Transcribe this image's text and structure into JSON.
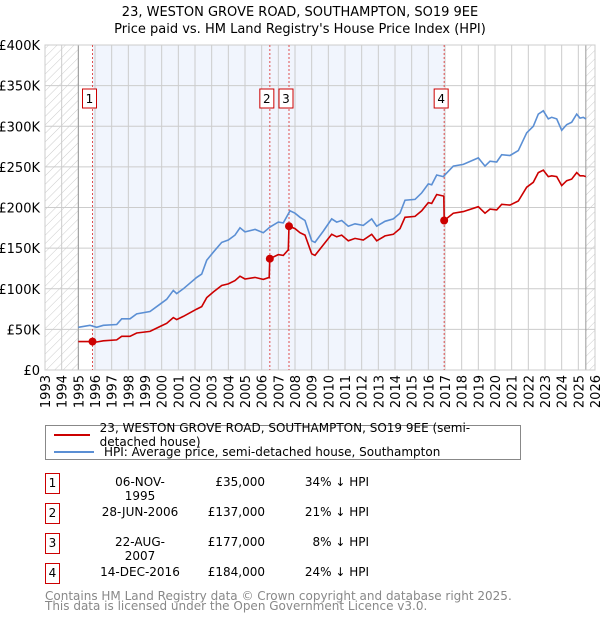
{
  "chart_data": {
    "type": "line",
    "title": "23, WESTON GROVE ROAD, SOUTHAMPTON, SO19 9EE",
    "subtitle": "Price paid vs. HM Land Registry's House Price Index (HPI)",
    "xlim": [
      1993,
      2026
    ],
    "ylim": [
      0,
      400000
    ],
    "x_ticks": [
      "1993",
      "1994",
      "1995",
      "1996",
      "1997",
      "1998",
      "1999",
      "2000",
      "2001",
      "2002",
      "2003",
      "2004",
      "2005",
      "2006",
      "2007",
      "2008",
      "2009",
      "2010",
      "2011",
      "2012",
      "2013",
      "2014",
      "2015",
      "2016",
      "2017",
      "2018",
      "2019",
      "2020",
      "2021",
      "2022",
      "2023",
      "2024",
      "2025",
      "2026"
    ],
    "y_ticks": [
      {
        "v": 0,
        "label": "£0"
      },
      {
        "v": 50000,
        "label": "£50K"
      },
      {
        "v": 100000,
        "label": "£100K"
      },
      {
        "v": 150000,
        "label": "£150K"
      },
      {
        "v": 200000,
        "label": "£200K"
      },
      {
        "v": 250000,
        "label": "£250K"
      },
      {
        "v": 300000,
        "label": "£300K"
      },
      {
        "v": 350000,
        "label": "£350K"
      },
      {
        "v": 400000,
        "label": "£400K"
      }
    ],
    "grid": true,
    "data_range": [
      1995,
      2025.45
    ],
    "series": [
      {
        "name": "23, WESTON GROVE ROAD, SOUTHAMPTON, SO19 9EE (semi-detached house)",
        "color": "#cc0000",
        "unit": "K",
        "points": [
          [
            1995.0,
            35
          ],
          [
            1995.85,
            35
          ],
          [
            1996.1,
            34.5
          ],
          [
            1996.5,
            36
          ],
          [
            1997.3,
            37
          ],
          [
            1997.6,
            41.5
          ],
          [
            1998.1,
            41.5
          ],
          [
            1998.5,
            45.5
          ],
          [
            1999.3,
            47.5
          ],
          [
            1999.9,
            53.5
          ],
          [
            2000.3,
            57.5
          ],
          [
            2000.7,
            64.5
          ],
          [
            2000.9,
            62
          ],
          [
            2001.3,
            66
          ],
          [
            2002.1,
            75
          ],
          [
            2002.4,
            78
          ],
          [
            2002.7,
            89
          ],
          [
            2003.1,
            96
          ],
          [
            2003.6,
            104
          ],
          [
            2004.0,
            106
          ],
          [
            2004.4,
            110
          ],
          [
            2004.7,
            115.5
          ],
          [
            2005.0,
            112
          ],
          [
            2005.6,
            114
          ],
          [
            2006.1,
            111.5
          ],
          [
            2006.45,
            114
          ],
          [
            2006.49,
            137
          ],
          [
            2007.0,
            142
          ],
          [
            2007.3,
            141
          ],
          [
            2007.6,
            148
          ],
          [
            2007.64,
            177
          ],
          [
            2008.0,
            174
          ],
          [
            2008.3,
            169
          ],
          [
            2008.6,
            166
          ],
          [
            2009.0,
            143
          ],
          [
            2009.2,
            141
          ],
          [
            2009.7,
            154
          ],
          [
            2010.2,
            167
          ],
          [
            2010.5,
            164
          ],
          [
            2010.8,
            166
          ],
          [
            2011.2,
            159
          ],
          [
            2011.6,
            162
          ],
          [
            2012.1,
            160
          ],
          [
            2012.6,
            167
          ],
          [
            2012.9,
            159
          ],
          [
            2013.4,
            165
          ],
          [
            2013.9,
            167
          ],
          [
            2014.3,
            174
          ],
          [
            2014.6,
            188
          ],
          [
            2015.2,
            189
          ],
          [
            2015.6,
            196
          ],
          [
            2016.0,
            206
          ],
          [
            2016.2,
            205
          ],
          [
            2016.5,
            216
          ],
          [
            2016.93,
            214
          ],
          [
            2016.95,
            184
          ],
          [
            2017.5,
            193
          ],
          [
            2018.1,
            195
          ],
          [
            2019.0,
            201
          ],
          [
            2019.4,
            193
          ],
          [
            2019.7,
            198
          ],
          [
            2020.1,
            197
          ],
          [
            2020.4,
            204
          ],
          [
            2020.9,
            203
          ],
          [
            2021.4,
            208
          ],
          [
            2021.9,
            225
          ],
          [
            2022.3,
            231
          ],
          [
            2022.6,
            243
          ],
          [
            2022.9,
            246
          ],
          [
            2023.2,
            238
          ],
          [
            2023.4,
            239
          ],
          [
            2023.7,
            238
          ],
          [
            2024.0,
            227
          ],
          [
            2024.3,
            233
          ],
          [
            2024.6,
            235
          ],
          [
            2024.9,
            243
          ],
          [
            2025.1,
            239
          ],
          [
            2025.3,
            239
          ],
          [
            2025.45,
            238
          ]
        ]
      },
      {
        "name": "HPI: Average price, semi-detached house, Southampton",
        "color": "#5b8fd4",
        "unit": "K",
        "points": [
          [
            1995.0,
            52.5
          ],
          [
            1995.7,
            55
          ],
          [
            1996.1,
            52.5
          ],
          [
            1996.5,
            55
          ],
          [
            1997.3,
            56
          ],
          [
            1997.6,
            63
          ],
          [
            1998.1,
            63
          ],
          [
            1998.5,
            69
          ],
          [
            1999.3,
            72
          ],
          [
            1999.9,
            81
          ],
          [
            2000.3,
            87
          ],
          [
            2000.7,
            98
          ],
          [
            2000.9,
            94
          ],
          [
            2001.3,
            100
          ],
          [
            2002.1,
            114
          ],
          [
            2002.4,
            118
          ],
          [
            2002.7,
            135
          ],
          [
            2003.1,
            145
          ],
          [
            2003.6,
            157
          ],
          [
            2004.0,
            160
          ],
          [
            2004.4,
            166
          ],
          [
            2004.7,
            175
          ],
          [
            2005.0,
            170
          ],
          [
            2005.6,
            173
          ],
          [
            2006.1,
            169
          ],
          [
            2006.5,
            176
          ],
          [
            2007.0,
            182
          ],
          [
            2007.3,
            181
          ],
          [
            2007.7,
            196
          ],
          [
            2008.0,
            193
          ],
          [
            2008.3,
            188
          ],
          [
            2008.6,
            184
          ],
          [
            2009.0,
            159
          ],
          [
            2009.2,
            157
          ],
          [
            2009.7,
            171
          ],
          [
            2010.2,
            186
          ],
          [
            2010.5,
            182
          ],
          [
            2010.8,
            184
          ],
          [
            2011.2,
            177
          ],
          [
            2011.6,
            180
          ],
          [
            2012.1,
            178
          ],
          [
            2012.6,
            186
          ],
          [
            2012.9,
            177
          ],
          [
            2013.4,
            183
          ],
          [
            2013.9,
            186
          ],
          [
            2014.3,
            193
          ],
          [
            2014.6,
            209
          ],
          [
            2015.2,
            210
          ],
          [
            2015.6,
            218
          ],
          [
            2016.0,
            229
          ],
          [
            2016.2,
            228
          ],
          [
            2016.5,
            240
          ],
          [
            2016.9,
            238
          ],
          [
            2017.5,
            251
          ],
          [
            2018.1,
            253
          ],
          [
            2019.0,
            261
          ],
          [
            2019.4,
            251
          ],
          [
            2019.7,
            257
          ],
          [
            2020.1,
            256
          ],
          [
            2020.4,
            265
          ],
          [
            2020.9,
            264
          ],
          [
            2021.4,
            270
          ],
          [
            2021.9,
            292
          ],
          [
            2022.3,
            300
          ],
          [
            2022.6,
            315
          ],
          [
            2022.9,
            319
          ],
          [
            2023.2,
            309
          ],
          [
            2023.4,
            311
          ],
          [
            2023.7,
            309
          ],
          [
            2024.0,
            295
          ],
          [
            2024.3,
            302
          ],
          [
            2024.6,
            305
          ],
          [
            2024.9,
            315
          ],
          [
            2025.1,
            310
          ],
          [
            2025.3,
            311
          ],
          [
            2025.45,
            309
          ]
        ]
      }
    ],
    "sales": [
      {
        "id": "1",
        "x": 1995.85,
        "value": 35000,
        "date": "06-NOV-1995",
        "price": "£35,000",
        "hpi": "34% ↓ HPI"
      },
      {
        "id": "2",
        "x": 2006.49,
        "value": 137000,
        "date": "28-JUN-2006",
        "price": "£137,000",
        "hpi": "21% ↓ HPI"
      },
      {
        "id": "3",
        "x": 2007.64,
        "value": 177000,
        "date": "22-AUG-2007",
        "price": "£177,000",
        "hpi": "8% ↓ HPI"
      },
      {
        "id": "4",
        "x": 2016.95,
        "value": 184000,
        "date": "14-DEC-2016",
        "price": "£184,000",
        "hpi": "24% ↓ HPI"
      }
    ]
  },
  "title_line1": "23, WESTON GROVE ROAD, SOUTHAMPTON, SO19 9EE",
  "title_line2": "Price paid vs. HM Land Registry's House Price Index (HPI)",
  "legend": {
    "property": "23, WESTON GROVE ROAD, SOUTHAMPTON, SO19 9EE (semi-detached house)",
    "hpi": "HPI: Average price, semi-detached house, Southampton"
  },
  "footer": {
    "line1": "Contains HM Land Registry data © Crown copyright and database right 2025.",
    "line2": "This data is licensed under the Open Government Licence v3.0."
  }
}
